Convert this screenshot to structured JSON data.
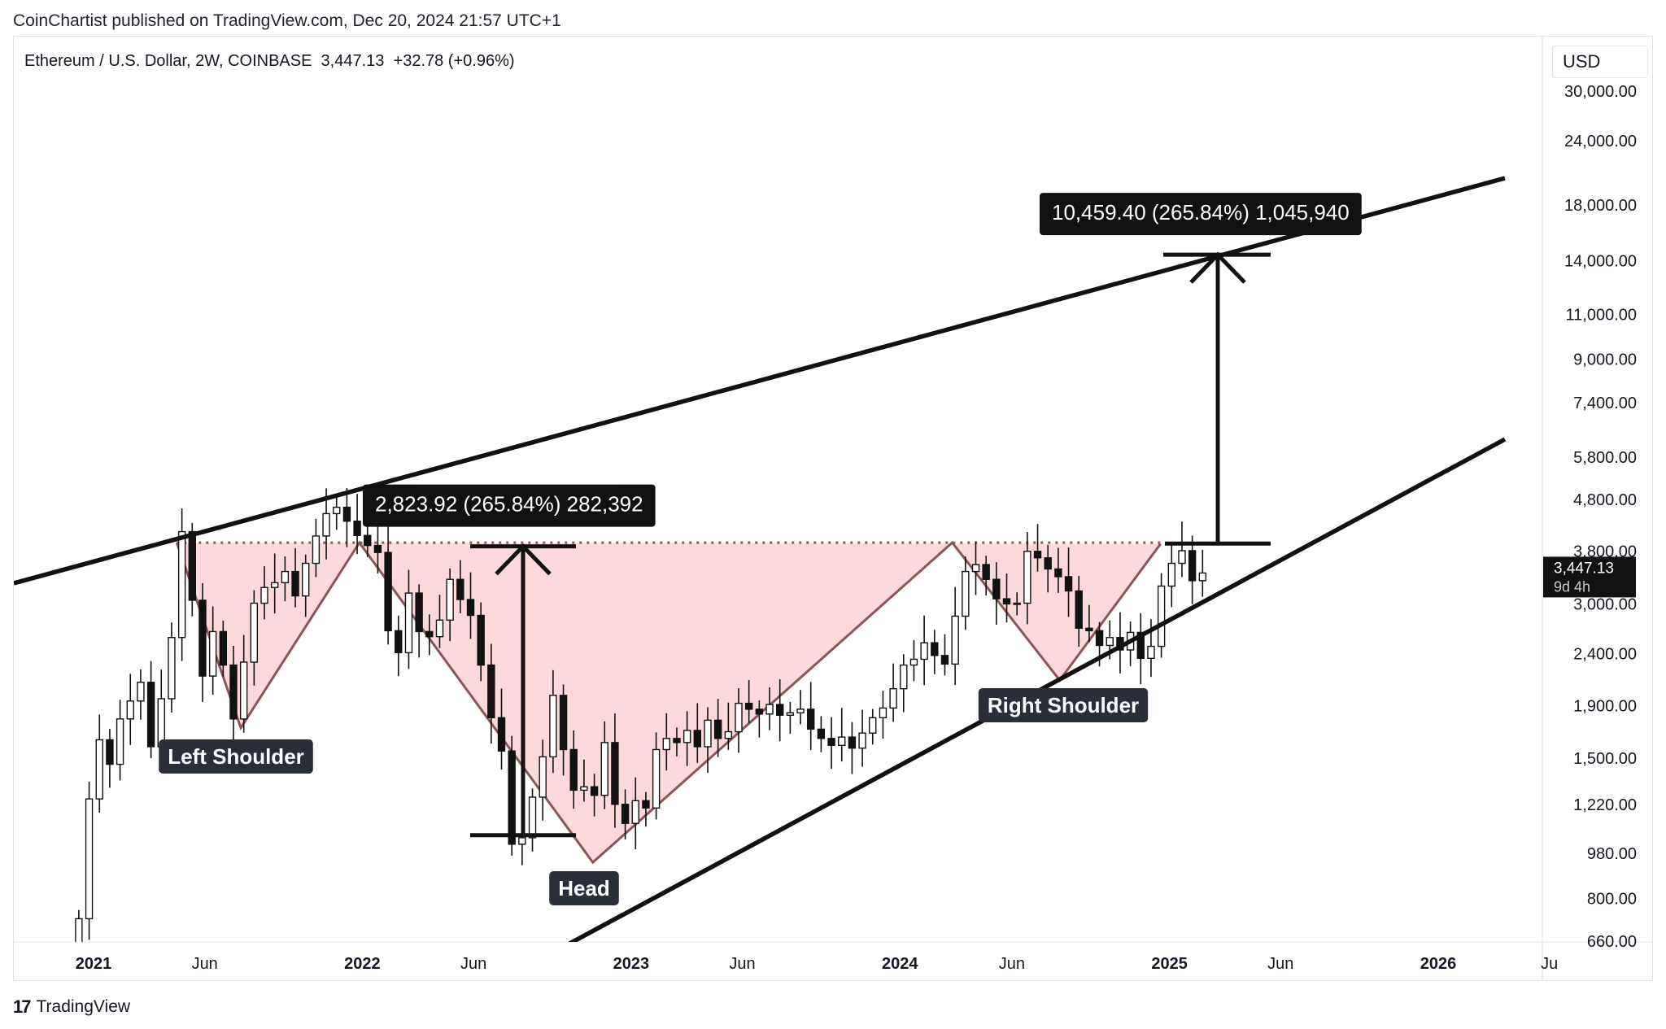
{
  "header": {
    "publisher": "CoinChartist published on TradingView.com, Dec 20, 2024 21:57 UTC+1"
  },
  "symbol": {
    "line": "Ethereum / U.S. Dollar, 2W, COINBASE  3,447.13  +32.78 (+0.96%)"
  },
  "currency_button": "USD",
  "footer": {
    "brand": "TradingView",
    "logo": "17"
  },
  "colors": {
    "pattern_fill": "#fcd5d6",
    "pattern_stroke": "#8a5557",
    "trendline": "#111111",
    "candle_up_body": "#ffffff",
    "candle_down_body": "#111111"
  },
  "chart_data": {
    "type": "candlestick",
    "title": "Ethereum / U.S. Dollar, 2W, COINBASE",
    "y_scale": "log",
    "ylim": [
      660,
      30000
    ],
    "y_ticks": [
      {
        "value": 30000,
        "label": "30,000.00"
      },
      {
        "value": 24000,
        "label": "24,000.00"
      },
      {
        "value": 18000,
        "label": "18,000.00"
      },
      {
        "value": 14000,
        "label": "14,000.00"
      },
      {
        "value": 11000,
        "label": "11,000.00"
      },
      {
        "value": 9000,
        "label": "9,000.00"
      },
      {
        "value": 7400,
        "label": "7,400.00"
      },
      {
        "value": 5800,
        "label": "5,800.00"
      },
      {
        "value": 4800,
        "label": "4,800.00"
      },
      {
        "value": 3800,
        "label": "3,800.00"
      },
      {
        "value": 3000,
        "label": "3,000.00"
      },
      {
        "value": 2400,
        "label": "2,400.00"
      },
      {
        "value": 1900,
        "label": "1,900.00"
      },
      {
        "value": 1500,
        "label": "1,500.00"
      },
      {
        "value": 1220,
        "label": "1,220.00"
      },
      {
        "value": 980,
        "label": "980.00"
      },
      {
        "value": 800,
        "label": "800.00"
      },
      {
        "value": 660,
        "label": "660.00"
      }
    ],
    "x_ticks": [
      {
        "date": "2021-01-01",
        "label": "2021",
        "bold": true
      },
      {
        "date": "2021-06-01",
        "label": "Jun",
        "bold": false
      },
      {
        "date": "2022-01-01",
        "label": "2022",
        "bold": true
      },
      {
        "date": "2022-06-01",
        "label": "Jun",
        "bold": false
      },
      {
        "date": "2023-01-01",
        "label": "2023",
        "bold": true
      },
      {
        "date": "2023-06-01",
        "label": "Jun",
        "bold": false
      },
      {
        "date": "2024-01-01",
        "label": "2024",
        "bold": true
      },
      {
        "date": "2024-06-01",
        "label": "Jun",
        "bold": false
      },
      {
        "date": "2025-01-01",
        "label": "2025",
        "bold": true
      },
      {
        "date": "2025-06-01",
        "label": "Jun",
        "bold": false
      },
      {
        "date": "2026-01-01",
        "label": "2026",
        "bold": true
      },
      {
        "date": "2026-06-01",
        "label": "Ju",
        "bold": false
      }
    ],
    "last_price": {
      "value": 3447.13,
      "label": "3,447.13",
      "countdown": "9d 4h"
    },
    "neckline": 3950,
    "candles_close": [
      730,
      1250,
      1630,
      1460,
      1790,
      1940,
      2110,
      1580,
      1960,
      2580,
      4150,
      3050,
      2170,
      2650,
      2280,
      1790,
      2310,
      3010,
      3230,
      3300,
      3470,
      3110,
      3600,
      4070,
      4500,
      4630,
      4350,
      4080,
      3900,
      3780,
      2660,
      2410,
      3150,
      2650,
      2590,
      2790,
      3350,
      3060,
      2850,
      2280,
      1800,
      1550,
      1020,
      1050,
      1260,
      1510,
      1990,
      1560,
      1300,
      1320,
      1270,
      1610,
      1220,
      1120,
      1240,
      1200,
      1560,
      1640,
      1610,
      1700,
      1580,
      1780,
      1640,
      1690,
      1920,
      1870,
      1830,
      1910,
      1820,
      1840,
      1870,
      1710,
      1640,
      1590,
      1650,
      1570,
      1680,
      1800,
      1880,
      2050,
      2280,
      2340,
      2520,
      2380,
      2290,
      2840,
      3470,
      3580,
      3350,
      3070,
      3000,
      3010,
      3800,
      3690,
      3510,
      3390,
      3180,
      2690,
      2660,
      2490,
      2580,
      2440,
      2640,
      2350,
      2480,
      3250,
      3600,
      3810,
      3330,
      3447.13
    ],
    "annotations": [
      {
        "kind": "label",
        "text": "Left Shoulder"
      },
      {
        "kind": "label",
        "text": "Head"
      },
      {
        "kind": "label",
        "text": "Right Shoulder"
      },
      {
        "kind": "measure",
        "text": "2,823.92 (265.84%) 282,392",
        "from": 1062,
        "to": 3886
      },
      {
        "kind": "measure",
        "text": "10,459.40 (265.84%) 1,045,940",
        "from": 3934,
        "to": 14393
      }
    ],
    "pattern_points": [
      {
        "date": "2021-04-24",
        "price": 3950
      },
      {
        "date": "2021-07-20",
        "price": 1720
      },
      {
        "date": "2021-12-28",
        "price": 3950
      },
      {
        "date": "2022-11-10",
        "price": 940
      },
      {
        "date": "2024-03-12",
        "price": 3950
      },
      {
        "date": "2024-08-05",
        "price": 2130
      },
      {
        "date": "2024-12-20",
        "price": 3930
      }
    ]
  }
}
